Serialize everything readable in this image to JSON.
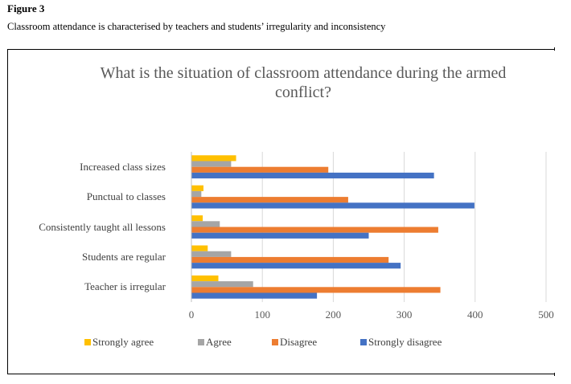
{
  "figure": {
    "label": "Figure 3",
    "caption": "Classroom attendance is characterised by teachers and students’ irregularity and inconsistency"
  },
  "colors": {
    "strongly_agree": "#FFC000",
    "agree": "#A5A5A5",
    "disagree": "#ED7D31",
    "strongly_disagree": "#4472C4",
    "grid": "#D9D9D9"
  },
  "chart_data": {
    "type": "bar",
    "orientation": "horizontal",
    "title": "What is the situation of classroom attendance during the armed conflict?",
    "categories": [
      "Increased class sizes",
      "Punctual to classes",
      "Consistently taught all lessons",
      "Students are regular",
      "Teacher is irregular"
    ],
    "series": [
      {
        "name": "Strongly agree",
        "values": [
          63,
          17,
          16,
          23,
          38
        ]
      },
      {
        "name": "Agree",
        "values": [
          56,
          14,
          40,
          56,
          87
        ]
      },
      {
        "name": "Disagree",
        "values": [
          193,
          221,
          348,
          278,
          351
        ]
      },
      {
        "name": "Strongly disagree",
        "values": [
          342,
          399,
          250,
          295,
          177
        ]
      }
    ],
    "xlim": [
      0,
      500
    ],
    "xticks": [
      "0",
      "100",
      "200",
      "300",
      "400",
      "500"
    ],
    "grid": true,
    "legend_position": "bottom"
  }
}
